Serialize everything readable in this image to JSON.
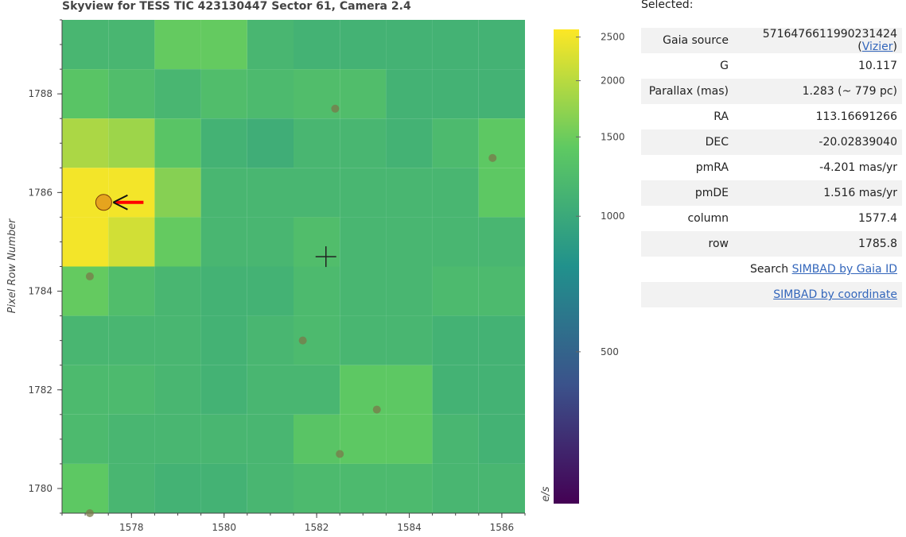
{
  "plot": {
    "title": "Skyview for TESS TIC 423130447 Sector 61, Camera 2.4",
    "ylabel": "Pixel Row Number",
    "colorbar_label": "e/s"
  },
  "chart_data": {
    "type": "heatmap",
    "title": "Skyview for TESS TIC 423130447 Sector 61, Camera 2.4",
    "xlabel": "",
    "ylabel": "Pixel Row Number",
    "xlim": [
      1576.5,
      1586.5
    ],
    "ylim": [
      1779.5,
      1789.5
    ],
    "x_ticks": [
      1578,
      1580,
      1582,
      1584,
      1586
    ],
    "y_ticks": [
      1780,
      1782,
      1784,
      1786,
      1788
    ],
    "columns": [
      1577,
      1578,
      1579,
      1580,
      1581,
      1582,
      1583,
      1584,
      1585,
      1586
    ],
    "rows": [
      1789,
      1788,
      1787,
      1786,
      1785,
      1784,
      1783,
      1782,
      1781,
      1780
    ],
    "values": [
      [
        1150,
        1150,
        1450,
        1450,
        1150,
        1100,
        1100,
        1100,
        1100,
        1100
      ],
      [
        1350,
        1250,
        1150,
        1250,
        1200,
        1250,
        1250,
        1100,
        1100,
        1100
      ],
      [
        1900,
        1800,
        1350,
        1100,
        1050,
        1150,
        1150,
        1100,
        1200,
        1400
      ],
      [
        2500,
        2500,
        1650,
        1150,
        1150,
        1150,
        1150,
        1150,
        1150,
        1400
      ],
      [
        2500,
        2200,
        1450,
        1150,
        1150,
        1250,
        1150,
        1150,
        1150,
        1150
      ],
      [
        1450,
        1250,
        1150,
        1100,
        1100,
        1200,
        1150,
        1150,
        1200,
        1200
      ],
      [
        1150,
        1150,
        1150,
        1100,
        1150,
        1200,
        1150,
        1150,
        1100,
        1100
      ],
      [
        1200,
        1200,
        1150,
        1100,
        1150,
        1150,
        1400,
        1400,
        1100,
        1100
      ],
      [
        1200,
        1150,
        1150,
        1150,
        1150,
        1350,
        1400,
        1400,
        1150,
        1100
      ],
      [
        1400,
        1150,
        1100,
        1100,
        1150,
        1200,
        1200,
        1200,
        1150,
        1150
      ]
    ],
    "color_scale": "log",
    "colorbar_range": [
      230,
      2600
    ],
    "colorbar_ticks": [
      500,
      1000,
      1500,
      2000,
      2500
    ],
    "colormap": [
      "#440154",
      "#3b528b",
      "#21918c",
      "#5ec962",
      "#fde725"
    ],
    "gaia_sources": [
      {
        "x": 1582.4,
        "y": 1787.7
      },
      {
        "x": 1585.8,
        "y": 1786.7
      },
      {
        "x": 1577.1,
        "y": 1784.3
      },
      {
        "x": 1581.7,
        "y": 1783.0
      },
      {
        "x": 1583.3,
        "y": 1781.6
      },
      {
        "x": 1582.5,
        "y": 1780.7
      },
      {
        "x": 1577.1,
        "y": 1779.5
      }
    ],
    "selected_source": {
      "x": 1577.4,
      "y": 1785.8
    },
    "target_position": {
      "x": 1582.2,
      "y": 1784.7
    },
    "colors": {
      "source_dot": "#7a7a4a",
      "selected_fill": "#e5a41e",
      "arrow": "#ff0000",
      "target_marker": "#222222"
    }
  },
  "selected": {
    "heading": "Selected:",
    "rows": [
      {
        "key": "Gaia source",
        "value": "5716476611990231424",
        "link": "Vizier"
      },
      {
        "key": "G",
        "value": "10.117"
      },
      {
        "key": "Parallax (mas)",
        "value": "1.283 (~ 779 pc)"
      },
      {
        "key": "RA",
        "value": "113.16691266"
      },
      {
        "key": "DEC",
        "value": "-20.02839040"
      },
      {
        "key": "pmRA",
        "value": "-4.201 mas/yr"
      },
      {
        "key": "pmDE",
        "value": "1.516 mas/yr"
      },
      {
        "key": "column",
        "value": "1577.4"
      },
      {
        "key": "row",
        "value": "1785.8"
      }
    ],
    "search_prefix": "Search",
    "simbad_gaia_link": "SIMBAD by Gaia ID",
    "simbad_coord_link": "SIMBAD by coordinate"
  }
}
